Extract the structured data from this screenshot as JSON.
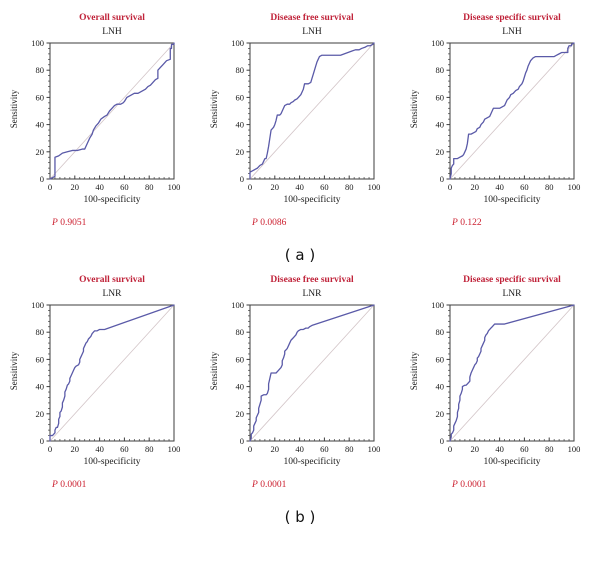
{
  "figure": {
    "panel_label_a": "( a )",
    "panel_label_b": "( b )"
  },
  "colors": {
    "title_red": "#c0233a",
    "pvalue_red": "#cc2030",
    "curve_blue": "#5a5aa8",
    "diagonal_gray": "#d2c4c7",
    "axis_dark": "#3d3d3d"
  },
  "chart_data": {
    "type": "line",
    "description": "Six ROC curves (sensitivity vs 100-specificity) with reference diagonal",
    "xlabel": "100-specificity",
    "ylabel": "Sensitivity",
    "xlim": [
      0,
      100
    ],
    "ylim": [
      0,
      100
    ],
    "x_ticks": [
      0,
      20,
      40,
      60,
      80,
      100
    ],
    "y_ticks": [
      0,
      20,
      40,
      60,
      80,
      100
    ],
    "minor_tick_step": 4,
    "grid": false,
    "legend": "none",
    "reference_line": [
      [
        0,
        0
      ],
      [
        100,
        100
      ]
    ],
    "charts": [
      {
        "title": "Overall survival",
        "subtitle": "LNH",
        "p_label": "P",
        "p_value": "0.9051",
        "roc_points": [
          [
            0,
            0
          ],
          [
            2,
            1
          ],
          [
            4,
            2
          ],
          [
            4,
            16
          ],
          [
            7,
            17
          ],
          [
            10,
            19
          ],
          [
            14,
            20
          ],
          [
            18,
            21
          ],
          [
            22,
            21
          ],
          [
            26,
            22
          ],
          [
            28,
            22
          ],
          [
            30,
            26
          ],
          [
            32,
            30
          ],
          [
            34,
            33
          ],
          [
            35,
            36
          ],
          [
            37,
            39
          ],
          [
            39,
            41
          ],
          [
            41,
            44
          ],
          [
            44,
            46
          ],
          [
            46,
            47
          ],
          [
            48,
            50
          ],
          [
            50,
            52
          ],
          [
            52,
            54
          ],
          [
            54,
            55
          ],
          [
            57,
            55
          ],
          [
            59,
            56
          ],
          [
            60,
            57
          ],
          [
            62,
            60
          ],
          [
            64,
            61
          ],
          [
            66,
            62
          ],
          [
            68,
            63
          ],
          [
            71,
            63
          ],
          [
            73,
            64
          ],
          [
            75,
            65
          ],
          [
            77,
            66
          ],
          [
            79,
            68
          ],
          [
            81,
            69
          ],
          [
            83,
            71
          ],
          [
            85,
            73
          ],
          [
            87,
            74
          ],
          [
            87,
            80
          ],
          [
            89,
            82
          ],
          [
            91,
            84
          ],
          [
            93,
            86
          ],
          [
            94,
            87
          ],
          [
            97,
            88
          ],
          [
            97,
            96
          ],
          [
            98,
            96
          ],
          [
            98,
            99
          ],
          [
            100,
            99
          ],
          [
            100,
            100
          ]
        ]
      },
      {
        "title": "Disease free survival",
        "subtitle": "LNH",
        "p_label": "P",
        "p_value": "0.0086",
        "roc_points": [
          [
            0,
            0
          ],
          [
            0,
            5
          ],
          [
            2,
            6
          ],
          [
            4,
            7
          ],
          [
            6,
            8
          ],
          [
            8,
            10
          ],
          [
            10,
            11
          ],
          [
            11,
            13
          ],
          [
            12,
            15
          ],
          [
            13,
            15
          ],
          [
            14,
            19
          ],
          [
            15,
            24
          ],
          [
            16,
            30
          ],
          [
            17,
            36
          ],
          [
            19,
            38
          ],
          [
            20,
            40
          ],
          [
            21,
            43
          ],
          [
            22,
            47
          ],
          [
            24,
            47
          ],
          [
            25,
            48
          ],
          [
            26,
            50
          ],
          [
            27,
            52
          ],
          [
            28,
            54
          ],
          [
            30,
            55
          ],
          [
            32,
            55
          ],
          [
            33,
            56
          ],
          [
            35,
            57
          ],
          [
            36,
            58
          ],
          [
            38,
            59
          ],
          [
            40,
            61
          ],
          [
            41,
            62
          ],
          [
            42,
            64
          ],
          [
            43,
            66
          ],
          [
            44,
            70
          ],
          [
            47,
            70
          ],
          [
            49,
            71
          ],
          [
            50,
            74
          ],
          [
            51,
            77
          ],
          [
            52,
            80
          ],
          [
            53,
            83
          ],
          [
            54,
            86
          ],
          [
            55,
            88
          ],
          [
            56,
            90
          ],
          [
            58,
            91
          ],
          [
            63,
            91
          ],
          [
            68,
            91
          ],
          [
            73,
            91
          ],
          [
            76,
            92
          ],
          [
            79,
            93
          ],
          [
            82,
            94
          ],
          [
            85,
            95
          ],
          [
            88,
            95
          ],
          [
            90,
            96
          ],
          [
            93,
            97
          ],
          [
            95,
            98
          ],
          [
            97,
            98
          ],
          [
            99,
            99
          ],
          [
            100,
            100
          ]
        ]
      },
      {
        "title": "Disease specific survival",
        "subtitle": "LNH",
        "p_label": "P",
        "p_value": "0.122",
        "roc_points": [
          [
            0,
            0
          ],
          [
            1,
            4
          ],
          [
            1,
            8
          ],
          [
            2,
            10
          ],
          [
            3,
            11
          ],
          [
            3,
            15
          ],
          [
            6,
            15
          ],
          [
            8,
            16
          ],
          [
            10,
            17
          ],
          [
            11,
            18
          ],
          [
            12,
            20
          ],
          [
            13,
            22
          ],
          [
            14,
            26
          ],
          [
            15,
            33
          ],
          [
            17,
            33
          ],
          [
            19,
            34
          ],
          [
            21,
            35
          ],
          [
            22,
            37
          ],
          [
            24,
            38
          ],
          [
            25,
            40
          ],
          [
            27,
            42
          ],
          [
            28,
            44
          ],
          [
            30,
            45
          ],
          [
            32,
            46
          ],
          [
            33,
            48
          ],
          [
            34,
            50
          ],
          [
            35,
            52
          ],
          [
            37,
            52
          ],
          [
            40,
            52
          ],
          [
            42,
            53
          ],
          [
            44,
            54
          ],
          [
            45,
            56
          ],
          [
            46,
            58
          ],
          [
            48,
            60
          ],
          [
            49,
            62
          ],
          [
            51,
            63
          ],
          [
            53,
            65
          ],
          [
            55,
            66
          ],
          [
            56,
            68
          ],
          [
            58,
            70
          ],
          [
            59,
            72
          ],
          [
            60,
            75
          ],
          [
            61,
            78
          ],
          [
            62,
            80
          ],
          [
            63,
            83
          ],
          [
            64,
            85
          ],
          [
            65,
            87
          ],
          [
            67,
            89
          ],
          [
            69,
            90
          ],
          [
            72,
            90
          ],
          [
            76,
            90
          ],
          [
            80,
            90
          ],
          [
            84,
            90
          ],
          [
            86,
            91
          ],
          [
            88,
            92
          ],
          [
            90,
            93
          ],
          [
            93,
            93
          ],
          [
            95,
            93
          ],
          [
            95,
            96
          ],
          [
            96,
            98
          ],
          [
            98,
            98
          ],
          [
            98,
            99
          ],
          [
            100,
            100
          ]
        ]
      },
      {
        "title": "Overall survival",
        "subtitle": "LNR",
        "p_label": "P",
        "p_value": "0.0001",
        "roc_points": [
          [
            0,
            0
          ],
          [
            0,
            4
          ],
          [
            2,
            4
          ],
          [
            3,
            5
          ],
          [
            4,
            6
          ],
          [
            4,
            8
          ],
          [
            5,
            10
          ],
          [
            6,
            10
          ],
          [
            7,
            13
          ],
          [
            7,
            16
          ],
          [
            8,
            18
          ],
          [
            8,
            21
          ],
          [
            9,
            22
          ],
          [
            10,
            25
          ],
          [
            10,
            28
          ],
          [
            11,
            30
          ],
          [
            12,
            33
          ],
          [
            12,
            36
          ],
          [
            13,
            38
          ],
          [
            14,
            41
          ],
          [
            15,
            42
          ],
          [
            16,
            44
          ],
          [
            16,
            46
          ],
          [
            17,
            48
          ],
          [
            18,
            50
          ],
          [
            19,
            52
          ],
          [
            20,
            54
          ],
          [
            21,
            55
          ],
          [
            23,
            56
          ],
          [
            24,
            58
          ],
          [
            24,
            60
          ],
          [
            25,
            62
          ],
          [
            26,
            64
          ],
          [
            27,
            66
          ],
          [
            27,
            68
          ],
          [
            28,
            70
          ],
          [
            29,
            72
          ],
          [
            30,
            73
          ],
          [
            31,
            75
          ],
          [
            32,
            76
          ],
          [
            33,
            77
          ],
          [
            34,
            79
          ],
          [
            35,
            80
          ],
          [
            36,
            81
          ],
          [
            38,
            81
          ],
          [
            40,
            82
          ],
          [
            44,
            82
          ],
          [
            100,
            100
          ]
        ]
      },
      {
        "title": "Disease free survival",
        "subtitle": "LNR",
        "p_label": "P",
        "p_value": "0.0001",
        "roc_points": [
          [
            0,
            0
          ],
          [
            1,
            2
          ],
          [
            1,
            5
          ],
          [
            2,
            6
          ],
          [
            3,
            8
          ],
          [
            3,
            11
          ],
          [
            4,
            13
          ],
          [
            5,
            15
          ],
          [
            5,
            17
          ],
          [
            6,
            19
          ],
          [
            7,
            21
          ],
          [
            7,
            24
          ],
          [
            8,
            27
          ],
          [
            9,
            30
          ],
          [
            9,
            33
          ],
          [
            11,
            34
          ],
          [
            13,
            34
          ],
          [
            14,
            35
          ],
          [
            15,
            38
          ],
          [
            15,
            42
          ],
          [
            16,
            46
          ],
          [
            17,
            50
          ],
          [
            19,
            50
          ],
          [
            21,
            50
          ],
          [
            22,
            51
          ],
          [
            23,
            52
          ],
          [
            25,
            54
          ],
          [
            26,
            56
          ],
          [
            26,
            59
          ],
          [
            27,
            61
          ],
          [
            28,
            64
          ],
          [
            28,
            66
          ],
          [
            29,
            67
          ],
          [
            30,
            68
          ],
          [
            31,
            70
          ],
          [
            32,
            72
          ],
          [
            33,
            74
          ],
          [
            34,
            75
          ],
          [
            35,
            76
          ],
          [
            37,
            78
          ],
          [
            38,
            80
          ],
          [
            39,
            81
          ],
          [
            41,
            82
          ],
          [
            43,
            82
          ],
          [
            45,
            83
          ],
          [
            47,
            83
          ],
          [
            48,
            84
          ],
          [
            50,
            85
          ],
          [
            100,
            100
          ]
        ]
      },
      {
        "title": "Disease specific survival",
        "subtitle": "LNR",
        "p_label": "P",
        "p_value": "0.0001",
        "roc_points": [
          [
            0,
            0
          ],
          [
            1,
            3
          ],
          [
            1,
            5
          ],
          [
            2,
            6
          ],
          [
            3,
            8
          ],
          [
            3,
            11
          ],
          [
            4,
            13
          ],
          [
            5,
            15
          ],
          [
            6,
            18
          ],
          [
            6,
            21
          ],
          [
            7,
            24
          ],
          [
            7,
            27
          ],
          [
            8,
            30
          ],
          [
            8,
            33
          ],
          [
            9,
            35
          ],
          [
            10,
            38
          ],
          [
            10,
            40
          ],
          [
            12,
            41
          ],
          [
            13,
            41
          ],
          [
            14,
            42
          ],
          [
            15,
            43
          ],
          [
            16,
            44
          ],
          [
            16,
            47
          ],
          [
            17,
            50
          ],
          [
            18,
            52
          ],
          [
            19,
            54
          ],
          [
            20,
            56
          ],
          [
            21,
            57
          ],
          [
            22,
            59
          ],
          [
            22,
            61
          ],
          [
            23,
            62
          ],
          [
            24,
            64
          ],
          [
            25,
            66
          ],
          [
            25,
            68
          ],
          [
            26,
            70
          ],
          [
            27,
            72
          ],
          [
            28,
            74
          ],
          [
            28,
            76
          ],
          [
            29,
            78
          ],
          [
            30,
            79
          ],
          [
            31,
            81
          ],
          [
            32,
            82
          ],
          [
            33,
            83
          ],
          [
            34,
            84
          ],
          [
            35,
            85
          ],
          [
            36,
            86
          ],
          [
            40,
            86
          ],
          [
            44,
            86
          ],
          [
            100,
            100
          ]
        ]
      }
    ]
  }
}
